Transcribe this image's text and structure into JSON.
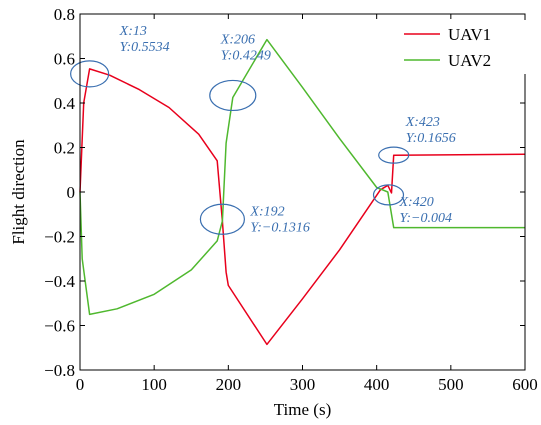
{
  "chart_data": {
    "type": "line",
    "xlabel": "Time (s)",
    "ylabel": "Flight direction",
    "xlim": [
      0,
      600
    ],
    "ylim": [
      -0.8,
      0.8
    ],
    "xticks": [
      0,
      100,
      200,
      300,
      400,
      500,
      600
    ],
    "xtick_labels": [
      "0",
      "100",
      "200",
      "300",
      "400",
      "500",
      "600"
    ],
    "yticks": [
      0.8,
      0.6,
      0.4,
      0.2,
      0,
      -0.2,
      -0.4,
      -0.6,
      -0.8
    ],
    "ytick_labels": [
      "0.8",
      "0.6",
      "0.4",
      "0.2",
      "0",
      "−0.2",
      "−0.4",
      "−0.6",
      "−0.8"
    ],
    "grid": false,
    "legend_position": "top-right",
    "series": [
      {
        "name": "UAV1",
        "color": "#e8001c",
        "x": [
          0,
          5,
          13,
          40,
          80,
          120,
          160,
          185,
          192,
          197,
          200,
          252,
          300,
          350,
          405,
          415,
          420,
          423,
          600
        ],
        "y": [
          0,
          0.4,
          0.5534,
          0.525,
          0.46,
          0.38,
          0.26,
          0.14,
          -0.1316,
          -0.36,
          -0.42,
          -0.685,
          -0.48,
          -0.26,
          0.01,
          0.03,
          -0.004,
          0.1656,
          0.17
        ]
      },
      {
        "name": "UAV2",
        "color": "#4fb82e",
        "x": [
          0,
          3,
          13,
          50,
          100,
          150,
          185,
          192,
          197,
          206,
          252,
          300,
          350,
          400,
          415,
          423,
          600
        ],
        "y": [
          0,
          -0.3,
          -0.55,
          -0.525,
          -0.46,
          -0.35,
          -0.22,
          -0.13,
          0.22,
          0.4249,
          0.685,
          0.47,
          0.24,
          0.02,
          0,
          -0.16,
          -0.16
        ]
      }
    ],
    "annotations": [
      {
        "x_label": "X:13",
        "y_label": "Y:0.5534",
        "x": 13,
        "y": 0.5534
      },
      {
        "x_label": "X:206",
        "y_label": "Y:0.4249",
        "x": 206,
        "y": 0.4249
      },
      {
        "x_label": "X:192",
        "y_label": "Y:−0.1316",
        "x": 192,
        "y": -0.1316
      },
      {
        "x_label": "X:423",
        "y_label": "Y:0.1656",
        "x": 423,
        "y": 0.1656
      },
      {
        "x_label": "X:420",
        "y_label": "Y:−0.004",
        "x": 420,
        "y": -0.004
      }
    ]
  }
}
